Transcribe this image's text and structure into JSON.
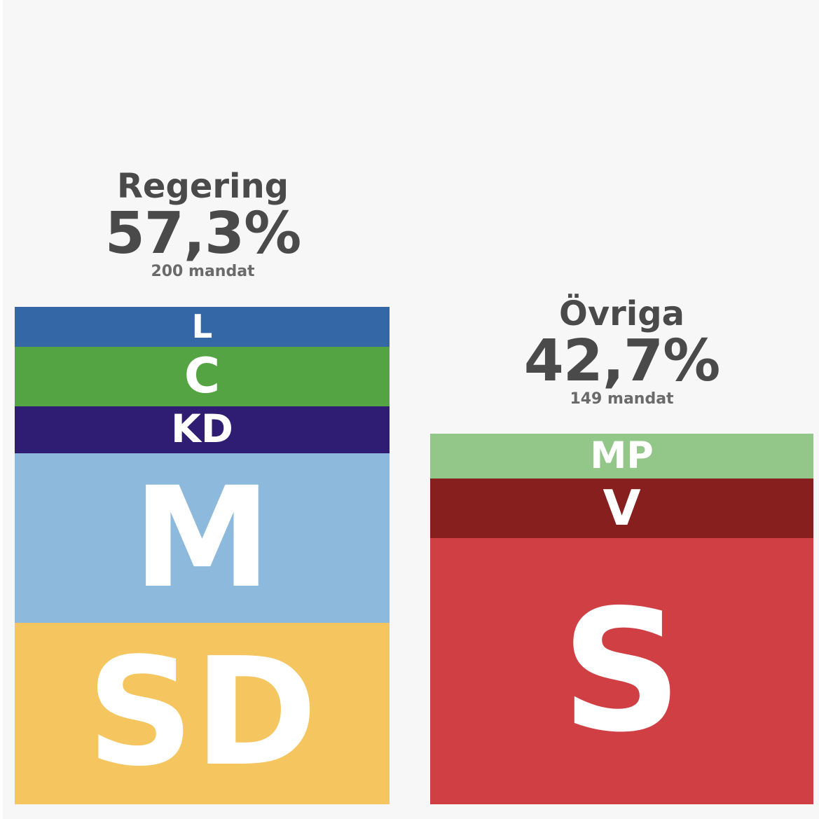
{
  "chart_data": {
    "type": "bar",
    "groups": [
      {
        "name": "Regering",
        "percent_label": "57,3%",
        "seats_label": "200 mandat",
        "seats": 200,
        "percent": 57.3,
        "segments": [
          {
            "label": "SD",
            "seats": 73,
            "color": "#f5c55f"
          },
          {
            "label": "M",
            "seats": 68,
            "color": "#8dbadc"
          },
          {
            "label": "KD",
            "seats": 19,
            "color": "#2f1c73"
          },
          {
            "label": "C",
            "seats": 24,
            "color": "#55a444"
          },
          {
            "label": "L",
            "seats": 16,
            "color": "#3467a6"
          }
        ]
      },
      {
        "name": "Övriga",
        "percent_label": "42,7%",
        "seats_label": "149 mandat",
        "seats": 149,
        "percent": 42.7,
        "segments": [
          {
            "label": "S",
            "seats": 107,
            "color": "#cf3f43"
          },
          {
            "label": "V",
            "seats": 24,
            "color": "#861f1d"
          },
          {
            "label": "MP",
            "seats": 18,
            "color": "#93c689"
          }
        ]
      }
    ]
  }
}
